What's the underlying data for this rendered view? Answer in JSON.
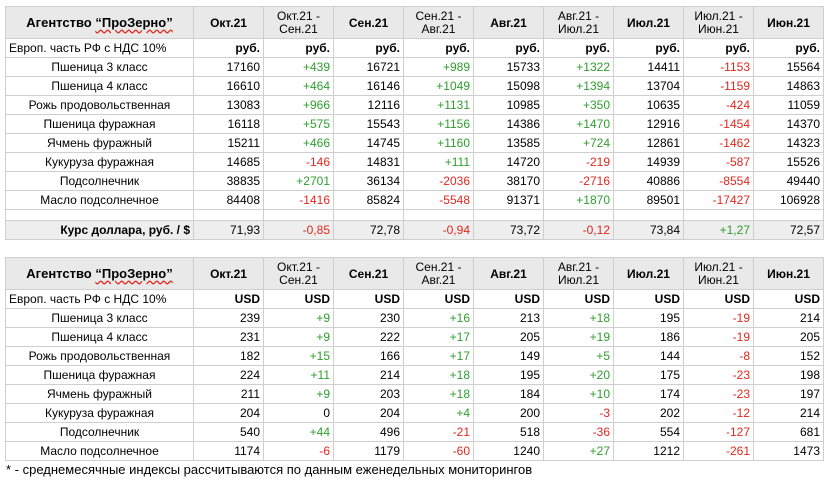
{
  "columns": [
    "Окт.21",
    "Окт.21 - Сен.21",
    "Сен.21",
    "Сен.21 - Авг.21",
    "Авг.21",
    "Авг.21 - Июл.21",
    "Июл.21",
    "Июл.21 - Июн.21",
    "Июн.21"
  ],
  "agency_word": "Агентство",
  "agency_name": "“ПроЗерно”",
  "subheader_label": "Европ. часть РФ с НДС 10%",
  "rub_table": {
    "unit": "руб.",
    "rows": [
      {
        "label": "Пшеница 3 класс",
        "values": [
          "17160",
          "+439",
          "16721",
          "+989",
          "15733",
          "+1322",
          "14411",
          "-1153",
          "15564"
        ]
      },
      {
        "label": "Пшеница 4 класс",
        "values": [
          "16610",
          "+464",
          "16146",
          "+1049",
          "15098",
          "+1394",
          "13704",
          "-1159",
          "14863"
        ]
      },
      {
        "label": "Рожь продовольственная",
        "values": [
          "13083",
          "+966",
          "12116",
          "+1131",
          "10985",
          "+350",
          "10635",
          "-424",
          "11059"
        ]
      },
      {
        "label": "Пшеница фуражная",
        "values": [
          "16118",
          "+575",
          "15543",
          "+1156",
          "14386",
          "+1470",
          "12916",
          "-1454",
          "14370"
        ]
      },
      {
        "label": "Ячмень фуражный",
        "values": [
          "15211",
          "+466",
          "14745",
          "+1160",
          "13585",
          "+724",
          "12861",
          "-1462",
          "14323"
        ]
      },
      {
        "label": "Кукуруза фуражная",
        "values": [
          "14685",
          "-146",
          "14831",
          "+111",
          "14720",
          "-219",
          "14939",
          "-587",
          "15526"
        ]
      },
      {
        "label": "Подсолнечник",
        "values": [
          "38835",
          "+2701",
          "36134",
          "-2036",
          "38170",
          "-2716",
          "40886",
          "-8554",
          "49440"
        ]
      },
      {
        "label": "Масло подсолнечное",
        "values": [
          "84408",
          "-1416",
          "85824",
          "-5548",
          "91371",
          "+1870",
          "89501",
          "-17427",
          "106928"
        ]
      }
    ]
  },
  "exchange_rate": {
    "label": "Курс доллара, руб. / $",
    "values": [
      "71,93",
      "-0,85",
      "72,78",
      "-0,94",
      "73,72",
      "-0,12",
      "73,84",
      "+1,27",
      "72,57"
    ]
  },
  "usd_table": {
    "unit": "USD",
    "rows": [
      {
        "label": "Пшеница 3 класс",
        "values": [
          "239",
          "+9",
          "230",
          "+16",
          "213",
          "+18",
          "195",
          "-19",
          "214"
        ]
      },
      {
        "label": "Пшеница 4 класс",
        "values": [
          "231",
          "+9",
          "222",
          "+17",
          "205",
          "+19",
          "186",
          "-19",
          "205"
        ]
      },
      {
        "label": "Рожь продовольственная",
        "values": [
          "182",
          "+15",
          "166",
          "+17",
          "149",
          "+5",
          "144",
          "-8",
          "152"
        ]
      },
      {
        "label": "Пшеница фуражная",
        "values": [
          "224",
          "+11",
          "214",
          "+18",
          "195",
          "+20",
          "175",
          "-23",
          "198"
        ]
      },
      {
        "label": "Ячмень фуражный",
        "values": [
          "211",
          "+9",
          "203",
          "+18",
          "184",
          "+10",
          "174",
          "-23",
          "197"
        ]
      },
      {
        "label": "Кукуруза фуражная",
        "values": [
          "204",
          "0",
          "204",
          "+4",
          "200",
          "-3",
          "202",
          "-12",
          "214"
        ]
      },
      {
        "label": "Подсолнечник",
        "values": [
          "540",
          "+44",
          "496",
          "-21",
          "518",
          "-36",
          "554",
          "-127",
          "681"
        ]
      },
      {
        "label": "Масло подсолнечное",
        "values": [
          "1174",
          "-6",
          "1179",
          "-60",
          "1240",
          "+27",
          "1212",
          "-261",
          "1473"
        ]
      }
    ]
  },
  "footnote": "* - среднемесячные индексы рассчитываются по данным еженедельных мониторингов",
  "colors": {
    "positive": "#2e9e2e",
    "negative": "#e0281e",
    "header_bg": "#e9e9e9"
  }
}
